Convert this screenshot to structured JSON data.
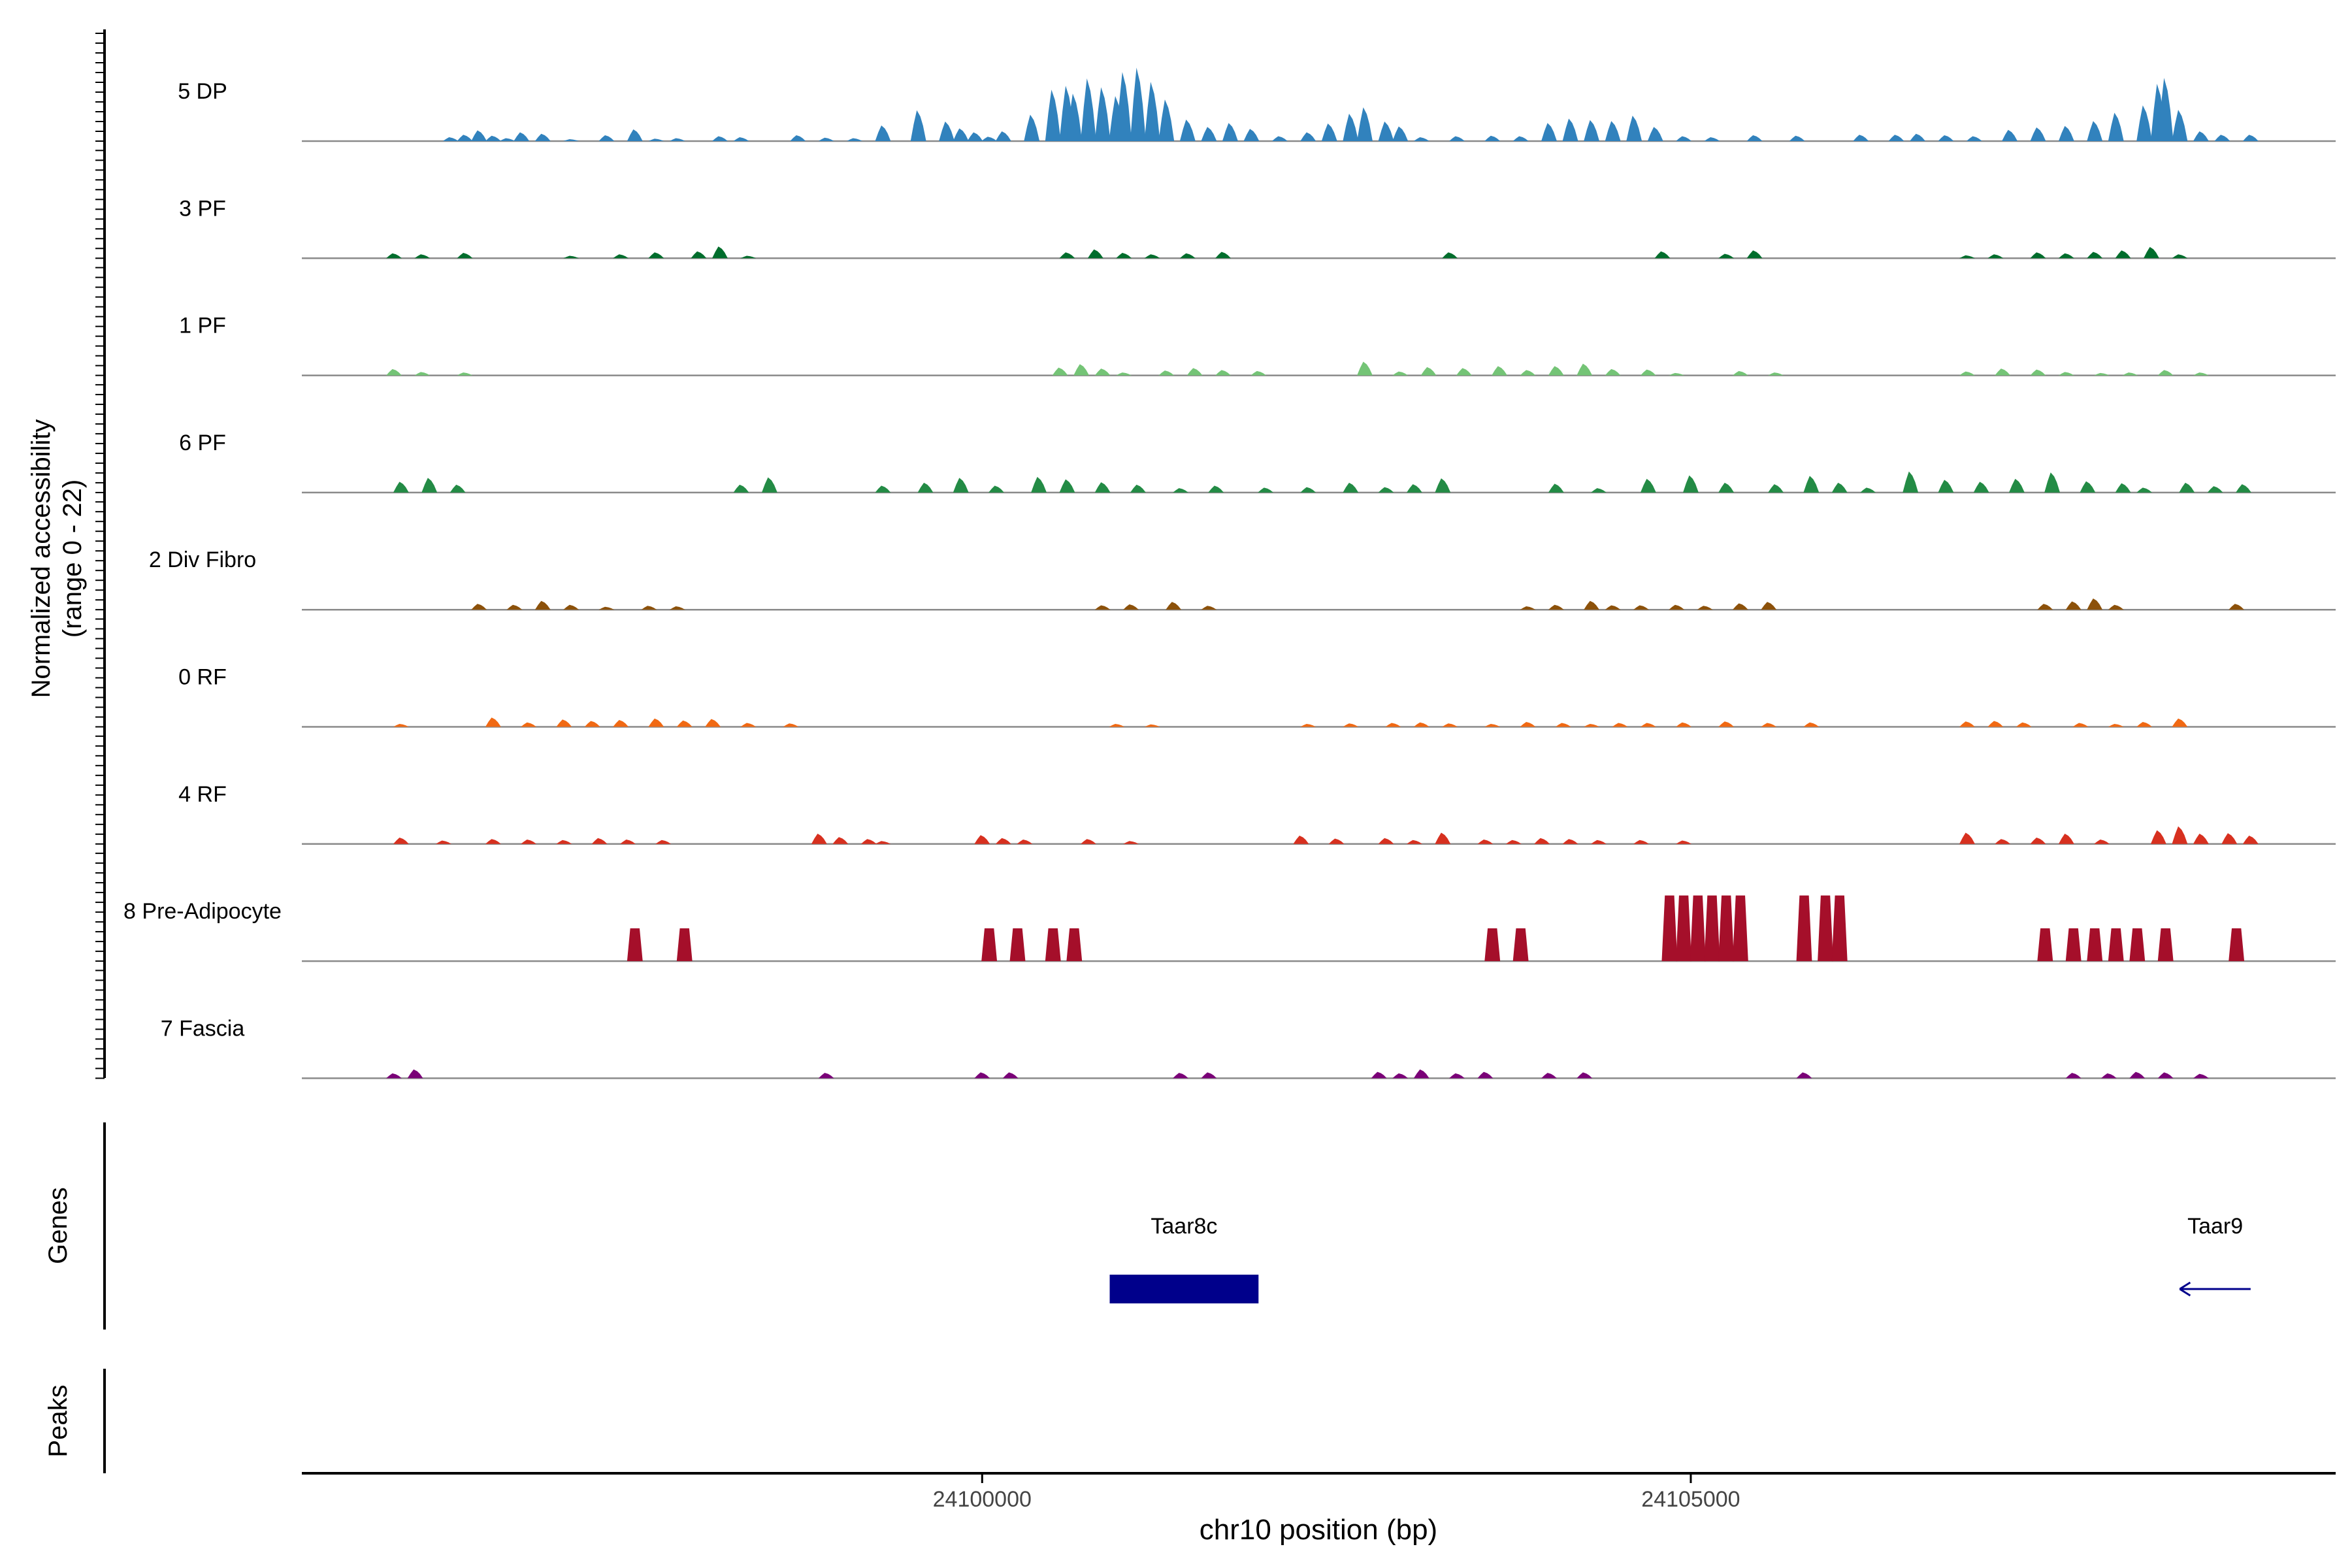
{
  "chart_data": {
    "type": "area",
    "title": "",
    "xlabel": "chr10 position (bp)",
    "ylabel": "Normalized accessibility",
    "ylabel_sub": "(range 0 - 22)",
    "y_range": [
      0,
      22
    ],
    "xlim": [
      24095200,
      24109550
    ],
    "x_ticks": [
      24100000,
      24105000
    ],
    "x_tick_labels": [
      "24100000",
      "24105000"
    ],
    "panel_labels": {
      "genes": "Genes",
      "peaks": "Peaks"
    },
    "colors": {
      "5 DP": "#3182bd",
      "3 PF": "#006d2c",
      "1 PF": "#74c476",
      "6 PF": "#238b45",
      "2 Div Fibro": "#8c510a",
      "0 RF": "#f16913",
      "4 RF": "#d7301f",
      "8 Pre-Adipocyte": "#a50f2a",
      "7 Fascia": "#7a0177",
      "gene": "#00008b"
    },
    "series": [
      {
        "name": "5 DP",
        "x": [
          24096250,
          24096350,
          24096450,
          24096550,
          24096650,
          24096750,
          24096900,
          24097100,
          24097350,
          24097550,
          24097700,
          24097850,
          24098150,
          24098300,
          24098700,
          24098900,
          24099100,
          24099300,
          24099550,
          24099750,
          24099850,
          24099950,
          24100050,
          24100150,
          24100350,
          24100500,
          24100600,
          24100650,
          24100750,
          24100850,
          24100950,
          24101000,
          24101100,
          24101200,
          24101300,
          24101450,
          24101600,
          24101750,
          24101900,
          24102100,
          24102300,
          24102450,
          24102600,
          24102700,
          24102850,
          24102950,
          24103100,
          24103350,
          24103600,
          24103800,
          24104000,
          24104150,
          24104300,
          24104450,
          24104600,
          24104750,
          24104950,
          24105150,
          24105450,
          24105750,
          24106200,
          24106450,
          24106600,
          24106800,
          24107000,
          24107250,
          24107450,
          24107650,
          24107850,
          24108000,
          24108200,
          24108300,
          24108350,
          24108450,
          24108600,
          24108750,
          24108950
        ],
        "values": [
          0.8,
          1.3,
          2.2,
          1.1,
          0.6,
          1.8,
          1.5,
          0.4,
          1.2,
          2.4,
          0.5,
          0.6,
          1.0,
          0.8,
          1.2,
          0.7,
          0.6,
          3.2,
          6.3,
          4.0,
          2.6,
          1.8,
          0.9,
          2.0,
          5.4,
          10.5,
          11.3,
          9.7,
          12.8,
          11.0,
          9.2,
          14.1,
          15.0,
          12.1,
          8.5,
          4.4,
          2.9,
          3.7,
          2.5,
          1.0,
          1.8,
          3.6,
          5.6,
          6.9,
          4.0,
          3.0,
          0.8,
          1.0,
          1.1,
          1.0,
          3.7,
          4.6,
          4.3,
          4.1,
          5.2,
          2.9,
          1.0,
          0.8,
          1.2,
          1.1,
          1.3,
          1.3,
          1.5,
          1.2,
          1.0,
          2.3,
          2.8,
          3.1,
          4.1,
          5.8,
          7.3,
          11.7,
          12.9,
          6.4,
          2.0,
          1.3,
          1.3
        ]
      },
      {
        "name": "3 PF",
        "x": [
          24095850,
          24096050,
          24096350,
          24097100,
          24097450,
          24097700,
          24098000,
          24098150,
          24098350,
          24100600,
          24100800,
          24101000,
          24101200,
          24101450,
          24101700,
          24103300,
          24104800,
          24105250,
          24105450,
          24106950,
          24107150,
          24107450,
          24107650,
          24107850,
          24108050,
          24108250,
          24108450
        ],
        "values": [
          1.0,
          0.8,
          1.1,
          0.5,
          0.8,
          1.2,
          1.4,
          2.4,
          0.5,
          1.2,
          1.8,
          1.1,
          0.8,
          1.0,
          1.3,
          1.2,
          1.4,
          0.9,
          1.6,
          0.6,
          0.8,
          1.2,
          1.0,
          1.3,
          1.6,
          2.3,
          0.8
        ]
      },
      {
        "name": "1 PF",
        "x": [
          24095850,
          24096050,
          24096350,
          24100550,
          24100700,
          24100850,
          24101000,
          24101300,
          24101500,
          24101700,
          24101950,
          24102700,
          24102950,
          24103150,
          24103400,
          24103650,
          24103850,
          24104050,
          24104250,
          24104450,
          24104700,
          24104900,
          24105350,
          24105600,
          24106950,
          24107200,
          24107450,
          24107650,
          24107900,
          24108100,
          24108350,
          24108600
        ],
        "values": [
          1.3,
          0.7,
          0.6,
          1.6,
          2.3,
          1.4,
          0.6,
          1.0,
          1.5,
          1.1,
          0.9,
          2.8,
          0.8,
          1.7,
          1.5,
          1.9,
          1.1,
          1.9,
          2.4,
          1.3,
          1.2,
          0.5,
          0.9,
          0.6,
          0.8,
          1.4,
          1.2,
          0.7,
          0.5,
          0.6,
          1.1,
          0.6
        ]
      },
      {
        "name": "6 PF",
        "x": [
          24095900,
          24096100,
          24096300,
          24098300,
          24098500,
          24099300,
          24099600,
          24099850,
          24100100,
          24100400,
          24100600,
          24100850,
          24101100,
          24101400,
          24101650,
          24102000,
          24102300,
          24102600,
          24102850,
          24103050,
          24103250,
          24104050,
          24104350,
          24104700,
          24105000,
          24105250,
          24105600,
          24105850,
          24106050,
          24106250,
          24106550,
          24106800,
          24107050,
          24107300,
          24107550,
          24107800,
          24108050,
          24108200,
          24108500,
          24108700,
          24108900
        ],
        "values": [
          2.2,
          3.0,
          1.6,
          1.6,
          3.1,
          1.4,
          2.0,
          3.0,
          1.4,
          3.2,
          2.7,
          2.1,
          1.6,
          0.9,
          1.4,
          1.0,
          1.1,
          2.0,
          1.1,
          1.7,
          2.9,
          1.8,
          0.9,
          2.8,
          3.5,
          2.0,
          1.7,
          3.4,
          2.0,
          1.0,
          4.3,
          2.6,
          2.2,
          2.8,
          4.1,
          2.3,
          1.9,
          1.0,
          2.0,
          1.3,
          1.7
        ]
      },
      {
        "name": "2 Div Fibro",
        "x": [
          24096450,
          24096700,
          24096900,
          24097100,
          24097350,
          24097650,
          24097850,
          24100850,
          24101050,
          24101350,
          24101600,
          24103850,
          24104050,
          24104300,
          24104450,
          24104650,
          24104900,
          24105100,
          24105350,
          24105550,
          24107500,
          24107700,
          24107850,
          24108000,
          24108850
        ],
        "values": [
          1.2,
          1.0,
          1.8,
          1.0,
          0.6,
          0.8,
          0.7,
          0.9,
          1.1,
          1.6,
          0.8,
          0.7,
          1.0,
          1.8,
          0.9,
          0.9,
          1.0,
          0.8,
          1.3,
          1.6,
          1.2,
          1.7,
          2.3,
          1.0,
          1.2
        ]
      },
      {
        "name": "0 RF",
        "x": [
          24095900,
          24096550,
          24096800,
          24097050,
          24097250,
          24097450,
          24097700,
          24097900,
          24098100,
          24098350,
          24098650,
          24100950,
          24101200,
          24102300,
          24102600,
          24102900,
          24103100,
          24103300,
          24103600,
          24103850,
          24104100,
          24104300,
          24104500,
          24104700,
          24104950,
          24105250,
          24105550,
          24105850,
          24106950,
          24107150,
          24107350,
          24107750,
          24108000,
          24108200,
          24108450
        ],
        "values": [
          0.6,
          1.9,
          0.9,
          1.5,
          1.2,
          1.4,
          1.7,
          1.3,
          1.6,
          0.8,
          0.7,
          0.6,
          0.5,
          0.6,
          0.7,
          0.8,
          0.9,
          0.7,
          0.6,
          1.0,
          0.8,
          0.6,
          0.8,
          0.8,
          0.9,
          1.1,
          0.8,
          0.9,
          1.1,
          1.2,
          0.9,
          0.8,
          0.6,
          1.0,
          1.7
        ]
      },
      {
        "name": "4 RF",
        "x": [
          24095900,
          24096200,
          24096550,
          24096800,
          24097050,
          24097300,
          24097500,
          24097750,
          24098850,
          24099000,
          24099200,
          24099300,
          24100000,
          24100150,
          24100300,
          24100750,
          24101050,
          24102250,
          24102500,
          24102850,
          24103050,
          24103250,
          24103550,
          24103750,
          24103950,
          24104150,
          24104350,
          24104650,
          24104950,
          24106950,
          24107200,
          24107450,
          24107650,
          24107900,
          24108300,
          24108450,
          24108600,
          24108800,
          24108950
        ],
        "values": [
          1.3,
          0.7,
          1.0,
          0.9,
          0.8,
          1.2,
          0.9,
          0.8,
          2.1,
          1.4,
          1.0,
          0.6,
          1.8,
          1.2,
          0.9,
          1.0,
          0.6,
          1.7,
          1.1,
          1.2,
          0.8,
          2.3,
          0.9,
          0.8,
          1.2,
          1.0,
          0.8,
          0.8,
          0.7,
          2.3,
          1.0,
          1.3,
          2.1,
          0.9,
          2.8,
          3.6,
          2.1,
          2.2,
          1.7
        ]
      },
      {
        "name": "8 Pre-Adipocyte",
        "x": [
          24097550,
          24097900,
          24100050,
          24100250,
          24100500,
          24100650,
          24103600,
          24103800,
          24104850,
          24104950,
          24105050,
          24105150,
          24105250,
          24105350,
          24105800,
          24105950,
          24106050,
          24107500,
          24107700,
          24107850,
          24108000,
          24108150,
          24108350,
          24108850
        ],
        "values": [
          6.7,
          6.7,
          6.7,
          6.7,
          6.7,
          6.7,
          6.7,
          6.7,
          13.4,
          13.4,
          13.4,
          13.4,
          13.4,
          13.4,
          13.4,
          13.4,
          13.4,
          6.7,
          6.7,
          6.7,
          6.7,
          6.7,
          6.7,
          6.7
        ]
      },
      {
        "name": "7 Fascia",
        "x": [
          24095850,
          24096000,
          24098900,
          24100000,
          24100200,
          24101400,
          24101600,
          24102800,
          24102950,
          24103100,
          24103350,
          24103550,
          24104000,
          24104250,
          24105800,
          24107700,
          24107950,
          24108150,
          24108350,
          24108600
        ],
        "values": [
          1.0,
          1.8,
          1.1,
          1.2,
          1.2,
          1.1,
          1.2,
          1.3,
          1.0,
          1.8,
          1.0,
          1.3,
          1.1,
          1.2,
          1.2,
          1.1,
          1.0,
          1.3,
          1.2,
          0.9
        ]
      }
    ],
    "genes": [
      {
        "name": "Taar8c",
        "start": 24100900,
        "end": 24101950,
        "strand": "-"
      },
      {
        "name": "Taar9",
        "start": 24108450,
        "end": 24108950,
        "strand": "-"
      }
    ],
    "peaks": []
  }
}
